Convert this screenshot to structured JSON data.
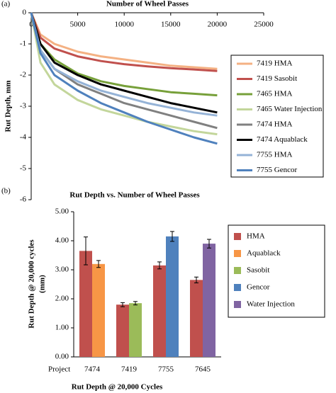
{
  "chart_data": [
    {
      "type": "line",
      "panel_label": "(a)",
      "x_label": "Number of Wheel Passes",
      "y_label": "Rut Depth, mm",
      "x": [
        0,
        1000,
        2500,
        5000,
        7500,
        10000,
        12500,
        15000,
        17500,
        20000
      ],
      "xlim": [
        0,
        25000
      ],
      "xticks": [
        0,
        5000,
        10000,
        15000,
        20000,
        25000
      ],
      "ylim": [
        -6,
        0
      ],
      "yticks": [
        0,
        -1,
        -2,
        -3,
        -4,
        -5,
        -6
      ],
      "series": [
        {
          "name": "7419 HMA",
          "color": "#f4b183",
          "values": [
            0,
            -0.7,
            -1.0,
            -1.25,
            -1.4,
            -1.5,
            -1.6,
            -1.7,
            -1.75,
            -1.8
          ]
        },
        {
          "name": "7419 Sasobit",
          "color": "#c0504d",
          "values": [
            0,
            -0.8,
            -1.15,
            -1.4,
            -1.55,
            -1.65,
            -1.72,
            -1.78,
            -1.82,
            -1.87
          ]
        },
        {
          "name": "7465 HMA",
          "color": "#77a03a",
          "values": [
            0,
            -1.0,
            -1.5,
            -1.95,
            -2.2,
            -2.35,
            -2.45,
            -2.55,
            -2.6,
            -2.65
          ]
        },
        {
          "name": "7465 Water Injection",
          "color": "#c3d69b",
          "values": [
            0,
            -1.6,
            -2.3,
            -2.8,
            -3.1,
            -3.3,
            -3.5,
            -3.65,
            -3.8,
            -3.9
          ]
        },
        {
          "name": "7474 HMA",
          "color": "#808080",
          "values": [
            0,
            -1.2,
            -1.8,
            -2.3,
            -2.6,
            -2.9,
            -3.1,
            -3.3,
            -3.5,
            -3.7
          ]
        },
        {
          "name": "7474 Aquablack",
          "color": "#000000",
          "values": [
            0,
            -1.0,
            -1.6,
            -2.0,
            -2.3,
            -2.5,
            -2.7,
            -2.9,
            -3.05,
            -3.2
          ]
        },
        {
          "name": "7755 HMA",
          "color": "#95b3d7",
          "values": [
            0,
            -1.2,
            -1.8,
            -2.2,
            -2.5,
            -2.7,
            -2.9,
            -3.05,
            -3.2,
            -3.3
          ]
        },
        {
          "name": "7755 Gencor",
          "color": "#4f81bd",
          "values": [
            0,
            -1.3,
            -2.0,
            -2.5,
            -2.9,
            -3.2,
            -3.5,
            -3.75,
            -4.0,
            -4.2
          ]
        }
      ]
    },
    {
      "type": "bar",
      "panel_label": "(b)",
      "title": "Rut Depth vs. Number of Wheel Passes",
      "x_axis_name": "Project",
      "x_label": "Rut Depth @ 20,000 Cycles",
      "y_label": [
        "Rut Depth @ 20,000 cycles",
        "(mm)"
      ],
      "categories": [
        "7474",
        "7419",
        "7755",
        "7645"
      ],
      "ylim": [
        0,
        5
      ],
      "yticks": [
        {
          "value": 0,
          "label": "0.00"
        },
        {
          "value": 1,
          "label": "1.00"
        },
        {
          "value": 2,
          "label": "2.00"
        },
        {
          "value": 3,
          "label": "3.00"
        },
        {
          "value": 4,
          "label": "4.00"
        },
        {
          "value": 5,
          "label": "5.00"
        }
      ],
      "series": [
        {
          "name": "HMA",
          "color": "#c0504d",
          "values": [
            3.65,
            1.8,
            3.15,
            2.65
          ],
          "errors": [
            0.48,
            0.07,
            0.12,
            0.1
          ]
        },
        {
          "name": "Aquablack",
          "color": "#f79646",
          "values": [
            3.2,
            null,
            null,
            null
          ],
          "errors": [
            0.12,
            null,
            null,
            null
          ]
        },
        {
          "name": "Sasobit",
          "color": "#9bbb59",
          "values": [
            null,
            1.85,
            null,
            null
          ],
          "errors": [
            null,
            0.06,
            null,
            null
          ]
        },
        {
          "name": "Gencor",
          "color": "#4f81bd",
          "values": [
            null,
            null,
            4.15,
            null
          ],
          "errors": [
            null,
            null,
            0.17,
            null
          ]
        },
        {
          "name": "Water Injection",
          "color": "#8064a2",
          "values": [
            null,
            null,
            null,
            3.9
          ],
          "errors": [
            null,
            null,
            null,
            0.15
          ]
        }
      ]
    }
  ]
}
